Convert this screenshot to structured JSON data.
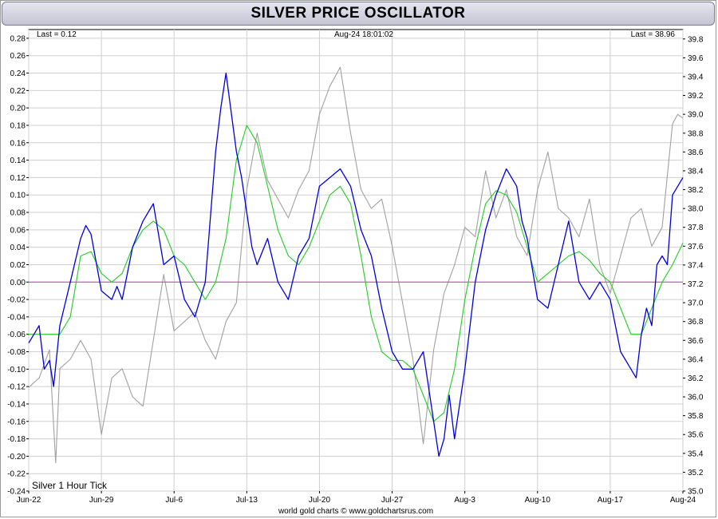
{
  "title": "SILVER PRICE OSCILLATOR",
  "header": {
    "last_left": "Last = 0.12",
    "timestamp": "Aug-24  18:01:02",
    "last_right": "Last = 38.96"
  },
  "series_label": "Silver 1 Hour Tick",
  "footer": "world gold charts © www.goldchartsrus.com",
  "colors": {
    "oscillator": "#0000dd",
    "signal": "#22cc22",
    "price": "#a0a0a0",
    "zero_line": "#cc33cc",
    "grid": "#cfcfcf"
  },
  "chart_data": {
    "type": "line",
    "x_ticks": [
      "Jun-22",
      "Jun-29",
      "Jul-6",
      "Jul-13",
      "Jul-20",
      "Jul-27",
      "Aug-3",
      "Aug-10",
      "Aug-17",
      "Aug-24"
    ],
    "x_range": [
      0,
      63
    ],
    "left_axis": {
      "ylim": [
        -0.24,
        0.29
      ],
      "ticks": [
        "0.28",
        "0.26",
        "0.24",
        "0.22",
        "0.20",
        "0.18",
        "0.16",
        "0.14",
        "0.12",
        "0.10",
        "0.08",
        "0.06",
        "0.04",
        "0.02",
        "0.00",
        "-0.02",
        "-0.04",
        "-0.06",
        "-0.08",
        "-0.10",
        "-0.12",
        "-0.14",
        "-0.16",
        "-0.18",
        "-0.20",
        "-0.22",
        "-0.24"
      ]
    },
    "right_axis": {
      "ylim": [
        35.0,
        39.9
      ],
      "ticks": [
        "39.8",
        "39.6",
        "39.4",
        "39.2",
        "39.0",
        "38.8",
        "38.6",
        "38.4",
        "38.2",
        "38.0",
        "37.8",
        "37.6",
        "37.4",
        "37.2",
        "37.0",
        "36.8",
        "36.6",
        "36.4",
        "36.2",
        "36.0",
        "35.8",
        "35.6",
        "35.4",
        "35.2",
        "35.0"
      ]
    },
    "series": [
      {
        "name": "Silver 1 Hour Tick",
        "axis": "right",
        "x": [
          0,
          1,
          2,
          2.6,
          3,
          4,
          5,
          6,
          7,
          8,
          9,
          10,
          11,
          12,
          13,
          14,
          15,
          16,
          17,
          18,
          19,
          20,
          21,
          22,
          23,
          24,
          25,
          26,
          27,
          28,
          29,
          30,
          31,
          32,
          33,
          34,
          35,
          36,
          37,
          38,
          39,
          40,
          41,
          42,
          43,
          44,
          45,
          46,
          47,
          48,
          49,
          50,
          51,
          52,
          53,
          54,
          55,
          56,
          57,
          58,
          59,
          60,
          61,
          62,
          62.5,
          63
        ],
        "values": [
          36.1,
          36.2,
          36.5,
          35.3,
          36.3,
          36.4,
          36.6,
          36.4,
          35.6,
          36.2,
          36.3,
          36.0,
          35.9,
          36.6,
          37.3,
          36.7,
          36.8,
          36.9,
          36.6,
          36.4,
          36.8,
          37.0,
          38.2,
          38.8,
          38.3,
          38.1,
          37.9,
          38.2,
          38.4,
          39.0,
          39.3,
          39.5,
          38.8,
          38.2,
          38.0,
          38.1,
          37.6,
          37.0,
          36.4,
          35.5,
          36.5,
          37.1,
          37.4,
          37.8,
          37.7,
          38.4,
          37.9,
          38.2,
          37.7,
          37.5,
          38.2,
          38.6,
          38.0,
          37.9,
          37.7,
          38.1,
          37.4,
          37.1,
          37.5,
          37.9,
          38.0,
          37.6,
          37.8,
          38.9,
          39.0,
          38.96
        ]
      },
      {
        "name": "Oscillator",
        "axis": "left",
        "x": [
          0,
          0.5,
          1,
          1.5,
          2,
          2.4,
          3,
          4,
          5,
          5.5,
          6,
          7,
          8,
          8.5,
          9,
          10,
          11,
          11.5,
          12,
          13,
          14,
          15,
          16,
          17,
          18,
          18.5,
          19,
          20,
          20.5,
          21,
          21.5,
          22,
          23,
          24,
          25,
          26,
          27,
          28,
          29,
          30,
          31,
          32,
          33,
          34,
          35,
          36,
          37,
          38,
          39,
          39.5,
          40,
          40.5,
          41,
          42,
          43,
          44,
          45,
          46,
          47,
          47.5,
          48,
          49,
          50,
          51,
          52,
          53,
          54,
          55,
          55.5,
          56,
          57,
          58,
          58.5,
          59,
          59.5,
          60,
          60.5,
          61,
          61.5,
          62,
          62.5,
          63
        ],
        "values": [
          -0.07,
          -0.06,
          -0.05,
          -0.1,
          -0.09,
          -0.12,
          -0.05,
          0.0,
          0.05,
          0.065,
          0.055,
          -0.01,
          -0.02,
          -0.005,
          -0.02,
          0.04,
          0.07,
          0.08,
          0.09,
          0.02,
          0.03,
          -0.02,
          -0.04,
          0.0,
          0.15,
          0.2,
          0.24,
          0.15,
          0.12,
          0.08,
          0.04,
          0.02,
          0.05,
          0.0,
          -0.02,
          0.03,
          0.05,
          0.11,
          0.12,
          0.13,
          0.11,
          0.06,
          0.03,
          -0.03,
          -0.08,
          -0.1,
          -0.1,
          -0.08,
          -0.16,
          -0.2,
          -0.18,
          -0.13,
          -0.18,
          -0.1,
          0.0,
          0.06,
          0.1,
          0.13,
          0.11,
          0.07,
          0.05,
          -0.02,
          -0.03,
          0.02,
          0.07,
          0.0,
          -0.02,
          0.0,
          -0.01,
          -0.02,
          -0.08,
          -0.1,
          -0.11,
          -0.06,
          -0.03,
          -0.05,
          0.02,
          0.03,
          0.02,
          0.1,
          0.11,
          0.12
        ]
      },
      {
        "name": "Signal",
        "axis": "left",
        "x": [
          0,
          1,
          2,
          3,
          4,
          5,
          6,
          7,
          8,
          9,
          10,
          11,
          12,
          13,
          14,
          15,
          16,
          17,
          18,
          19,
          20,
          21,
          22,
          23,
          24,
          25,
          26,
          27,
          28,
          29,
          30,
          31,
          32,
          33,
          34,
          35,
          36,
          37,
          38,
          39,
          40,
          41,
          42,
          43,
          44,
          45,
          46,
          47,
          48,
          49,
          50,
          51,
          52,
          53,
          54,
          55,
          56,
          57,
          58,
          59,
          60,
          61,
          62,
          63
        ],
        "values": [
          -0.06,
          -0.06,
          -0.06,
          -0.06,
          -0.04,
          0.03,
          0.035,
          0.01,
          0.0,
          0.01,
          0.04,
          0.06,
          0.07,
          0.06,
          0.03,
          0.02,
          0.0,
          -0.02,
          0.0,
          0.05,
          0.14,
          0.18,
          0.16,
          0.11,
          0.06,
          0.03,
          0.02,
          0.04,
          0.07,
          0.1,
          0.11,
          0.09,
          0.03,
          -0.04,
          -0.08,
          -0.09,
          -0.09,
          -0.1,
          -0.13,
          -0.16,
          -0.15,
          -0.1,
          -0.02,
          0.04,
          0.09,
          0.105,
          0.1,
          0.08,
          0.04,
          0.0,
          0.01,
          0.02,
          0.03,
          0.035,
          0.025,
          0.01,
          0.0,
          -0.03,
          -0.06,
          -0.06,
          -0.03,
          0.0,
          0.02,
          0.045
        ]
      }
    ]
  }
}
